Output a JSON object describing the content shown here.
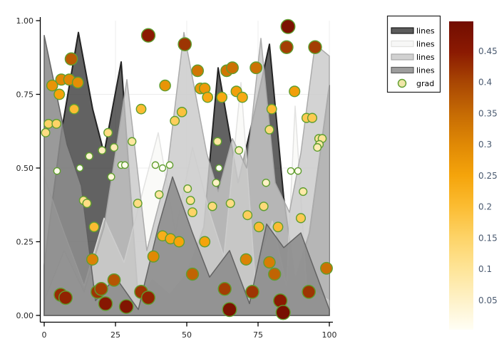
{
  "legend": {
    "border_color": "#222222",
    "background": "#ffffff",
    "entries": [
      {
        "label": "lines",
        "swatch_type": "band",
        "fill": "#404040",
        "stroke": "#1c1c1c"
      },
      {
        "label": "lines",
        "swatch_type": "band",
        "fill": "#f6f6f4",
        "stroke": "#e2e2e0"
      },
      {
        "label": "lines",
        "swatch_type": "band",
        "fill": "#c9c9c9",
        "stroke": "#a8a8a8"
      },
      {
        "label": "lines",
        "swatch_type": "band",
        "fill": "#8c8c8c",
        "stroke": "#5f5f5f"
      },
      {
        "label": "grad",
        "swatch_type": "marker",
        "fill": "#f0e6a8",
        "stroke": "#5f9e30"
      }
    ]
  },
  "chart_data": {
    "type": "area",
    "title": "",
    "xlabel": "",
    "ylabel": "",
    "xlim": [
      0,
      100
    ],
    "ylim": [
      0,
      1
    ],
    "grid": true,
    "grid_color": "#ececec",
    "axis_color": "#000000",
    "x_ticks": {
      "values": [
        0,
        25,
        50,
        75,
        100
      ],
      "labels": [
        "0",
        "25",
        "50",
        "75",
        "100"
      ]
    },
    "y_ticks": {
      "values": [
        1,
        0.75,
        0.5,
        0.25,
        0
      ],
      "labels": [
        "1.00",
        "0.75",
        "0.50",
        "0.25",
        "0.00"
      ]
    },
    "series": [
      {
        "name": "lines",
        "fill": "#404040",
        "stroke": "#1c1c1c",
        "opacity": 0.82,
        "stroke_width": 2,
        "x": [
          0,
          6,
          12,
          17,
          21,
          27,
          33,
          38,
          44,
          50,
          56,
          61,
          68,
          74,
          79,
          84,
          88,
          93,
          100
        ],
        "y": [
          0.17,
          0.62,
          0.96,
          0.7,
          0.55,
          0.86,
          0.05,
          0.12,
          0.07,
          0.14,
          0.3,
          0.84,
          0.45,
          0.7,
          0.92,
          0.4,
          0.12,
          0.28,
          0.78
        ]
      },
      {
        "name": "lines",
        "fill": "#f6f6f4",
        "stroke": "#e2e2e0",
        "opacity": 0.6,
        "stroke_width": 1.5,
        "x": [
          0,
          7,
          14,
          21,
          28,
          34,
          40,
          46,
          52,
          58,
          63,
          69,
          74,
          80,
          85,
          88,
          92,
          100
        ],
        "y": [
          0.47,
          0.28,
          0.1,
          0.33,
          0.18,
          0.4,
          0.62,
          0.28,
          0.57,
          0.35,
          0.2,
          0.79,
          0.12,
          0.32,
          0.1,
          0.71,
          0.1,
          0.05
        ]
      },
      {
        "name": "lines",
        "fill": "#c9c9c9",
        "stroke": "#a8a8a8",
        "opacity": 0.82,
        "stroke_width": 1.5,
        "x": [
          0,
          7,
          14,
          21,
          29,
          36,
          43,
          49,
          57,
          61,
          66,
          71,
          76,
          81,
          86,
          90,
          95,
          100
        ],
        "y": [
          0.05,
          0.22,
          0.08,
          0.3,
          0.8,
          0.22,
          0.48,
          0.96,
          0.55,
          0.42,
          0.6,
          0.5,
          0.94,
          0.45,
          0.35,
          0.55,
          0.92,
          0.88
        ]
      },
      {
        "name": "lines",
        "fill": "#8c8c8c",
        "stroke": "#5f5f5f",
        "opacity": 0.88,
        "stroke_width": 1.5,
        "x": [
          0,
          8,
          13,
          18,
          25,
          33,
          40,
          45,
          52,
          58,
          65,
          72,
          78,
          84,
          90,
          100
        ],
        "y": [
          0.95,
          0.58,
          0.44,
          0.05,
          0.13,
          0.02,
          0.3,
          0.47,
          0.28,
          0.13,
          0.22,
          0.04,
          0.31,
          0.23,
          0.28,
          0.02
        ]
      }
    ],
    "scatter": {
      "name": "grad",
      "color_rule": "abs(y - 0.5)",
      "marker_stroke": "#5f9e30",
      "points": [
        [
          0.5,
          0.62
        ],
        [
          1.5,
          0.65
        ],
        [
          2.8,
          0.78
        ],
        [
          4.3,
          0.65
        ],
        [
          5.3,
          0.75
        ],
        [
          6,
          0.8
        ],
        [
          8.8,
          0.8
        ],
        [
          9.5,
          0.87
        ],
        [
          11.8,
          0.79
        ],
        [
          10.5,
          0.7
        ],
        [
          4.5,
          0.49
        ],
        [
          12.5,
          0.5
        ],
        [
          15.8,
          0.54
        ],
        [
          20.3,
          0.56
        ],
        [
          13.8,
          0.39
        ],
        [
          15,
          0.38
        ],
        [
          17.5,
          0.3
        ],
        [
          16.9,
          0.19
        ],
        [
          5.8,
          0.07
        ],
        [
          7.5,
          0.06
        ],
        [
          18.7,
          0.08
        ],
        [
          20,
          0.09
        ],
        [
          21.5,
          0.04
        ],
        [
          24.5,
          0.12
        ],
        [
          28.8,
          0.03
        ],
        [
          34,
          0.08
        ],
        [
          36.5,
          0.06
        ],
        [
          22.4,
          0.62
        ],
        [
          24.5,
          0.57
        ],
        [
          27,
          0.51
        ],
        [
          28.3,
          0.51
        ],
        [
          30.8,
          0.59
        ],
        [
          32.8,
          0.38
        ],
        [
          34,
          0.7
        ],
        [
          36.5,
          0.95
        ],
        [
          42.4,
          0.78
        ],
        [
          40.3,
          0.41
        ],
        [
          39,
          0.51
        ],
        [
          41.5,
          0.5
        ],
        [
          38.3,
          0.2
        ],
        [
          41.5,
          0.27
        ],
        [
          44.3,
          0.26
        ],
        [
          45.8,
          0.66
        ],
        [
          48.3,
          0.69
        ],
        [
          49.3,
          0.92
        ],
        [
          47.3,
          0.25
        ],
        [
          50.3,
          0.43
        ],
        [
          51.3,
          0.39
        ],
        [
          52,
          0.35
        ],
        [
          52,
          0.14
        ],
        [
          53.8,
          0.83
        ],
        [
          54.8,
          0.77
        ],
        [
          56.3,
          0.77
        ],
        [
          57.3,
          0.74
        ],
        [
          56.3,
          0.25
        ],
        [
          59,
          0.37
        ],
        [
          60.3,
          0.45
        ],
        [
          60.8,
          0.59
        ],
        [
          61.3,
          0.5
        ],
        [
          63.3,
          0.09
        ],
        [
          65,
          0.02
        ],
        [
          62.3,
          0.74
        ],
        [
          64,
          0.83
        ],
        [
          65.3,
          0.38
        ],
        [
          66,
          0.84
        ],
        [
          67.4,
          0.76
        ],
        [
          68.3,
          0.56
        ],
        [
          69.5,
          0.74
        ],
        [
          71.3,
          0.34
        ],
        [
          70.8,
          0.19
        ],
        [
          73,
          0.08
        ],
        [
          74.3,
          0.84
        ],
        [
          75.3,
          0.3
        ],
        [
          77,
          0.37
        ],
        [
          77.8,
          0.45
        ],
        [
          79,
          0.63
        ],
        [
          79.8,
          0.7
        ],
        [
          79,
          0.18
        ],
        [
          80.8,
          0.14
        ],
        [
          82.8,
          0.05
        ],
        [
          83.8,
          0.01
        ],
        [
          82,
          0.3
        ],
        [
          85.5,
          0.98
        ],
        [
          85,
          0.91
        ],
        [
          95,
          0.91
        ],
        [
          87.8,
          0.76
        ],
        [
          86.5,
          0.49
        ],
        [
          89,
          0.49
        ],
        [
          90.8,
          0.42
        ],
        [
          90,
          0.33
        ],
        [
          92,
          0.67
        ],
        [
          94,
          0.67
        ],
        [
          92.8,
          0.08
        ],
        [
          96.3,
          0.6
        ],
        [
          97.5,
          0.6
        ],
        [
          96.5,
          0.58
        ],
        [
          99,
          0.16
        ],
        [
          95.8,
          0.57
        ],
        [
          23.5,
          0.47
        ],
        [
          44,
          0.51
        ]
      ]
    },
    "colorbar": {
      "range": [
        0,
        0.5
      ],
      "ticks": [
        "0.45",
        "0.4",
        "0.35",
        "0.3",
        "0.25",
        "0.2",
        "0.15",
        "0.1",
        "0.05"
      ],
      "label_color": "#4a5a70",
      "stops": [
        [
          "0.00",
          "#fffef5"
        ],
        [
          "0.05",
          "#fef1c6"
        ],
        [
          "0.10",
          "#fee496"
        ],
        [
          "0.15",
          "#fdd367"
        ],
        [
          "0.20",
          "#fbbc32"
        ],
        [
          "0.25",
          "#f5a40b"
        ],
        [
          "0.30",
          "#e08905"
        ],
        [
          "0.35",
          "#c66b04"
        ],
        [
          "0.40",
          "#a94703"
        ],
        [
          "0.45",
          "#8b1a02"
        ],
        [
          "0.50",
          "#720d01"
        ]
      ]
    }
  }
}
